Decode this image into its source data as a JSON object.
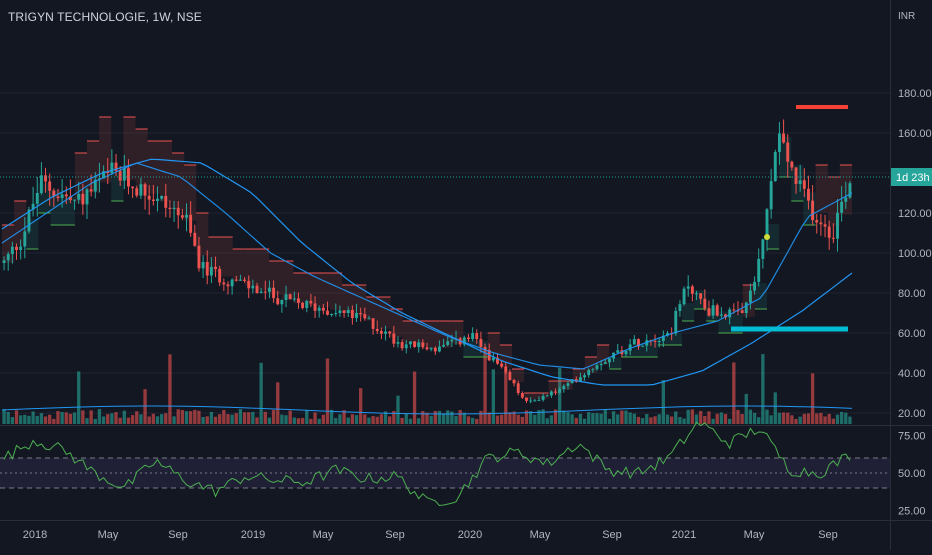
{
  "header": {
    "title": "TRIGYN TECHNOLOGIE, 1W, NSE",
    "currency": "INR"
  },
  "price_axis": {
    "ticks": [
      {
        "value": 180,
        "label": "180.00"
      },
      {
        "value": 160,
        "label": "160.00"
      },
      {
        "value": 140,
        "label": "140.00"
      },
      {
        "value": 120,
        "label": "120.00"
      },
      {
        "value": 100,
        "label": "100.00"
      },
      {
        "value": 80,
        "label": "80.00"
      },
      {
        "value": 60,
        "label": "60.00"
      },
      {
        "value": 40,
        "label": "40.00"
      },
      {
        "value": 20,
        "label": "20.00"
      }
    ],
    "current_label": "1d 23h",
    "current_price": 138
  },
  "rsi_axis": {
    "ticks": [
      {
        "value": 75,
        "label": "75.00"
      },
      {
        "value": 50,
        "label": "50.00"
      },
      {
        "value": 25,
        "label": "25.00"
      }
    ]
  },
  "time_axis": {
    "labels": [
      "2018",
      "May",
      "Sep",
      "2019",
      "May",
      "Sep",
      "2020",
      "May",
      "Sep",
      "2021",
      "May",
      "Sep"
    ]
  },
  "colors": {
    "background": "#131722",
    "up": "#26a69a",
    "down": "#ef5350",
    "ma": "#2196f3",
    "rsi": "#4caf50",
    "resistance": "#f44336",
    "support": "#00bcd4",
    "grid": "#1f2330"
  },
  "chart_data": {
    "type": "line",
    "series": [
      {
        "kind": "close",
        "x": [
          "2017-11",
          "2017-12",
          "2018-01",
          "2018-03",
          "2018-05",
          "2018-07",
          "2018-09",
          "2018-10",
          "2018-12",
          "2019-03",
          "2019-05",
          "2019-07",
          "2019-09",
          "2019-11",
          "2020-01",
          "2020-03",
          "2020-04",
          "2020-06",
          "2020-08",
          "2020-10",
          "2020-12",
          "2021-01",
          "2021-02",
          "2021-04",
          "2021-05",
          "2021-06",
          "2021-07",
          "2021-08",
          "2021-09",
          "2021-10"
        ],
        "values": [
          95,
          108,
          135,
          125,
          140,
          130,
          118,
          92,
          85,
          75,
          72,
          67,
          55,
          52,
          58,
          38,
          25,
          32,
          45,
          55,
          60,
          85,
          72,
          68,
          95,
          160,
          135,
          120,
          110,
          138
        ]
      },
      {
        "kind": "moving average (long)",
        "values": [
          112,
          128,
          140,
          147,
          145,
          130,
          105,
          85,
          70,
          58,
          46,
          38,
          34,
          34,
          41,
          55,
          71,
          90
        ]
      },
      {
        "kind": "moving average (short)",
        "values": [
          105,
          120,
          135,
          145,
          138,
          120,
          100,
          88,
          78,
          68,
          58,
          50,
          44,
          42,
          52,
          60,
          66,
          78,
          118,
          130
        ]
      },
      {
        "kind": "RSI",
        "values": [
          60,
          72,
          65,
          50,
          40,
          58,
          45,
          38,
          48,
          45,
          44,
          52,
          46,
          48,
          30,
          34,
          60,
          64,
          56,
          70,
          52,
          50,
          60,
          84,
          70,
          80,
          52,
          50,
          62
        ]
      }
    ],
    "levels": [
      {
        "kind": "resistance",
        "value": 173
      },
      {
        "kind": "support",
        "value": 62
      }
    ],
    "ylim": [
      0,
      195
    ],
    "rsi_ylim": [
      20,
      90
    ],
    "rsi_bands": [
      60,
      50,
      40
    ],
    "grid": false
  }
}
